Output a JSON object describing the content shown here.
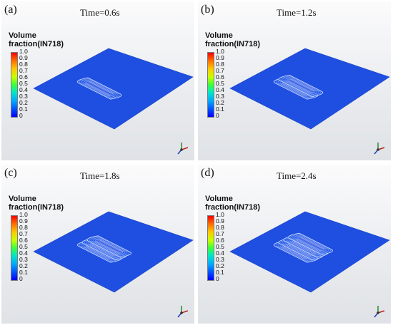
{
  "legend": {
    "title_line1": "Volume",
    "title_line2": "fraction(IN718)",
    "ticks": [
      "1.0",
      "0.9",
      "0.8",
      "0.7",
      "0.6",
      "0.5",
      "0.4",
      "0.3",
      "0.2",
      "0.1",
      "0"
    ],
    "colors": [
      "#ff0000",
      "#ff6a00",
      "#ffc800",
      "#c8ff00",
      "#3cff3c",
      "#00e6c8",
      "#00aaff",
      "#0050ff",
      "#0000ff"
    ]
  },
  "panels": [
    {
      "label": "(a)",
      "time": "Time=0.6s",
      "tracks": 1
    },
    {
      "label": "(b)",
      "time": "Time=1.2s",
      "tracks": 2
    },
    {
      "label": "(c)",
      "time": "Time=1.8s",
      "tracks": 3
    },
    {
      "label": "(d)",
      "time": "Time=2.4s",
      "tracks": 4
    }
  ],
  "plate_color": "#1f4fe0",
  "track_line_color": "#d6e4ff"
}
